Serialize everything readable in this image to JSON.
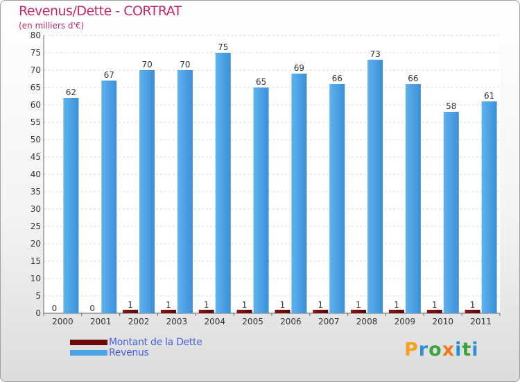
{
  "header": {
    "title": "Revenus/Dette - CORTRAT",
    "subtitle": "(en milliers d'€)"
  },
  "chart_data": {
    "type": "bar",
    "title": "Revenus/Dette - CORTRAT",
    "ylabel": "(en milliers d'€)",
    "xlabel": "",
    "ylim": [
      0,
      80
    ],
    "yticks": [
      0,
      5,
      10,
      15,
      20,
      25,
      30,
      35,
      40,
      45,
      50,
      55,
      60,
      65,
      70,
      75,
      80
    ],
    "grid": true,
    "categories": [
      "2000",
      "2001",
      "2002",
      "2003",
      "2004",
      "2005",
      "2006",
      "2007",
      "2008",
      "2009",
      "2010",
      "2011"
    ],
    "series": [
      {
        "name": "Montant de la Dette",
        "color": "#6b0a0a",
        "values": [
          0,
          0,
          1,
          1,
          1,
          1,
          1,
          1,
          1,
          1,
          1,
          1
        ]
      },
      {
        "name": "Revenus",
        "color": "#4aa3e4",
        "values": [
          62,
          67,
          70,
          70,
          75,
          65,
          69,
          66,
          73,
          66,
          58,
          61
        ]
      }
    ],
    "legend_position": "bottom-left"
  },
  "logo": {
    "letters": [
      "P",
      "r",
      "o",
      "x",
      "i",
      "t",
      "i"
    ],
    "colors": [
      "#f5a21a",
      "#2f8fd8",
      "#3aa43a",
      "#f07a1a",
      "#1a8fd8",
      "#3aa43a",
      "#2f8fd8"
    ]
  }
}
